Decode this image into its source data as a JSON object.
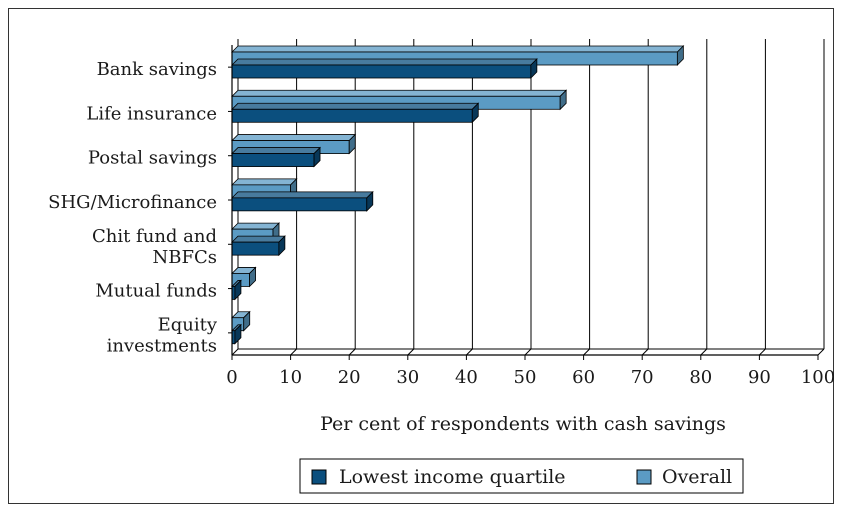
{
  "chart_data": {
    "type": "bar",
    "orientation": "horizontal",
    "categories": [
      [
        "Bank savings"
      ],
      [
        "Life insurance"
      ],
      [
        "Postal savings"
      ],
      [
        "SHG/Microfinance"
      ],
      [
        "Chit fund and",
        "NBFCs"
      ],
      [
        "Mutual funds"
      ],
      [
        "Equity",
        "investments"
      ]
    ],
    "series": [
      {
        "name": "Lowest income quartile",
        "color": "#0b4f7e",
        "values": [
          51,
          41,
          14,
          23,
          8,
          0.5,
          0.5
        ]
      },
      {
        "name": "Overall",
        "color": "#5b9bc4",
        "values": [
          76,
          56,
          20,
          10,
          7,
          3,
          2
        ]
      }
    ],
    "xlabel": "Per cent of respondents with cash savings",
    "xlim": [
      0,
      100
    ],
    "xticks": [
      "0",
      "10",
      "20",
      "30",
      "40",
      "50",
      "60",
      "70",
      "80",
      "90",
      "100"
    ],
    "grid": "vertical",
    "legend": "bottom-center"
  }
}
